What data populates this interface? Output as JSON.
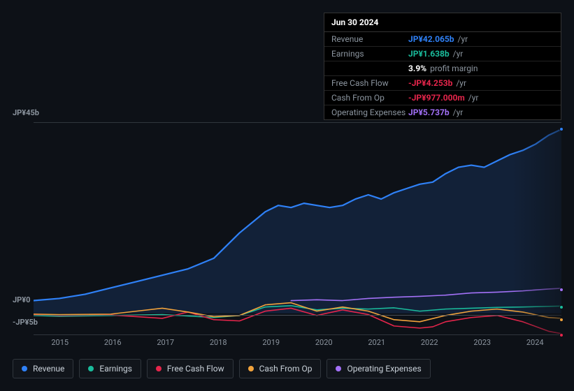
{
  "tooltip": {
    "date": "Jun 30 2024",
    "rows": [
      {
        "label": "Revenue",
        "value": "JP¥42.065b",
        "suffix": "/yr",
        "color": "#2f81f7"
      },
      {
        "label": "Earnings",
        "value": "JP¥1.638b",
        "suffix": "/yr",
        "color": "#1abc9c"
      },
      {
        "label": "",
        "value": "3.9%",
        "suffix": "profit margin",
        "color": "#ffffff"
      },
      {
        "label": "Free Cash Flow",
        "value": "-JP¥4.253b",
        "suffix": "/yr",
        "color": "#e5254b"
      },
      {
        "label": "Cash From Op",
        "value": "-JP¥977.000m",
        "suffix": "/yr",
        "color": "#e5254b"
      },
      {
        "label": "Operating Expenses",
        "value": "JP¥5.737b",
        "suffix": "/yr",
        "color": "#a371f7"
      }
    ]
  },
  "chart": {
    "ymax": 45,
    "ymin": -5,
    "ytick_top": "JP¥45b",
    "ytick_zero": "JP¥0",
    "ytick_bottom": "-JP¥5b",
    "x_labels": [
      "2015",
      "2016",
      "2017",
      "2018",
      "2019",
      "2020",
      "2021",
      "2022",
      "2023",
      "2024"
    ],
    "xrange": [
      2014.5,
      2024.75
    ],
    "background": "#0d1117",
    "grid_color": "#30363d",
    "series": [
      {
        "name": "Revenue",
        "color": "#2f81f7",
        "fill": true,
        "fill_color": "rgba(47,129,247,0.15)",
        "width": 2.2,
        "data": [
          [
            2014.5,
            3.0
          ],
          [
            2015,
            3.5
          ],
          [
            2015.5,
            4.5
          ],
          [
            2016,
            6.0
          ],
          [
            2016.5,
            7.5
          ],
          [
            2017,
            9.0
          ],
          [
            2017.5,
            10.5
          ],
          [
            2018,
            13.0
          ],
          [
            2018.5,
            19.0
          ],
          [
            2019,
            24.0
          ],
          [
            2019.25,
            25.5
          ],
          [
            2019.5,
            25.0
          ],
          [
            2019.75,
            26.0
          ],
          [
            2020,
            25.5
          ],
          [
            2020.25,
            25.0
          ],
          [
            2020.5,
            25.5
          ],
          [
            2020.75,
            27.0
          ],
          [
            2021,
            28.0
          ],
          [
            2021.25,
            27.0
          ],
          [
            2021.5,
            28.5
          ],
          [
            2021.75,
            29.5
          ],
          [
            2022,
            30.5
          ],
          [
            2022.25,
            31.0
          ],
          [
            2022.5,
            33.0
          ],
          [
            2022.75,
            34.5
          ],
          [
            2023,
            35.0
          ],
          [
            2023.25,
            34.5
          ],
          [
            2023.5,
            36.0
          ],
          [
            2023.75,
            37.5
          ],
          [
            2024,
            38.5
          ],
          [
            2024.25,
            40.0
          ],
          [
            2024.5,
            42.065
          ],
          [
            2024.75,
            43.5
          ]
        ]
      },
      {
        "name": "Earnings",
        "color": "#1abc9c",
        "fill": false,
        "width": 1.6,
        "data": [
          [
            2014.5,
            -0.5
          ],
          [
            2015,
            -0.7
          ],
          [
            2016,
            -0.5
          ],
          [
            2017,
            -0.3
          ],
          [
            2018,
            -1.0
          ],
          [
            2018.5,
            -0.5
          ],
          [
            2019,
            1.5
          ],
          [
            2019.5,
            1.8
          ],
          [
            2020,
            0.8
          ],
          [
            2020.5,
            1.2
          ],
          [
            2021,
            1.0
          ],
          [
            2021.5,
            1.3
          ],
          [
            2022,
            0.5
          ],
          [
            2022.5,
            1.0
          ],
          [
            2023,
            1.2
          ],
          [
            2023.5,
            1.4
          ],
          [
            2024,
            1.5
          ],
          [
            2024.5,
            1.638
          ],
          [
            2024.75,
            1.7
          ]
        ]
      },
      {
        "name": "Free Cash Flow",
        "color": "#e5254b",
        "fill": false,
        "width": 1.6,
        "data": [
          [
            2014.5,
            -0.3
          ],
          [
            2015,
            -0.5
          ],
          [
            2016,
            -0.4
          ],
          [
            2017,
            -1.2
          ],
          [
            2017.5,
            0.3
          ],
          [
            2018,
            -1.5
          ],
          [
            2018.5,
            -1.8
          ],
          [
            2019,
            0.5
          ],
          [
            2019.5,
            1.2
          ],
          [
            2020,
            -0.5
          ],
          [
            2020.5,
            0.8
          ],
          [
            2021,
            -0.3
          ],
          [
            2021.5,
            -3.0
          ],
          [
            2022,
            -3.5
          ],
          [
            2022.25,
            -3.2
          ],
          [
            2022.5,
            -2.0
          ],
          [
            2023,
            -1.0
          ],
          [
            2023.5,
            -0.5
          ],
          [
            2024,
            -2.0
          ],
          [
            2024.5,
            -4.253
          ],
          [
            2024.75,
            -4.8
          ]
        ]
      },
      {
        "name": "Cash From Op",
        "color": "#f2a33c",
        "fill": false,
        "width": 1.6,
        "data": [
          [
            2014.5,
            -0.2
          ],
          [
            2015,
            -0.3
          ],
          [
            2016,
            -0.2
          ],
          [
            2016.5,
            0.5
          ],
          [
            2017,
            1.2
          ],
          [
            2017.5,
            0.3
          ],
          [
            2018,
            -0.8
          ],
          [
            2018.5,
            -0.5
          ],
          [
            2019,
            2.0
          ],
          [
            2019.5,
            2.5
          ],
          [
            2020,
            0.5
          ],
          [
            2020.5,
            1.5
          ],
          [
            2021,
            0.5
          ],
          [
            2021.5,
            -1.5
          ],
          [
            2022,
            -2.0
          ],
          [
            2022.5,
            -0.5
          ],
          [
            2023,
            0.5
          ],
          [
            2023.5,
            1.0
          ],
          [
            2024,
            0.3
          ],
          [
            2024.5,
            -0.977
          ],
          [
            2024.75,
            -1.2
          ]
        ]
      },
      {
        "name": "Operating Expenses",
        "color": "#a371f7",
        "fill": false,
        "width": 1.6,
        "data": [
          [
            2019.5,
            3.0
          ],
          [
            2020,
            3.2
          ],
          [
            2020.5,
            3.0
          ],
          [
            2021,
            3.5
          ],
          [
            2021.5,
            3.8
          ],
          [
            2022,
            4.0
          ],
          [
            2022.5,
            4.3
          ],
          [
            2023,
            4.8
          ],
          [
            2023.5,
            5.0
          ],
          [
            2024,
            5.3
          ],
          [
            2024.5,
            5.737
          ],
          [
            2024.75,
            5.9
          ]
        ]
      }
    ],
    "legend": [
      {
        "label": "Revenue",
        "color": "#2f81f7"
      },
      {
        "label": "Earnings",
        "color": "#1abc9c"
      },
      {
        "label": "Free Cash Flow",
        "color": "#e5254b"
      },
      {
        "label": "Cash From Op",
        "color": "#f2a33c"
      },
      {
        "label": "Operating Expenses",
        "color": "#a371f7"
      }
    ]
  }
}
